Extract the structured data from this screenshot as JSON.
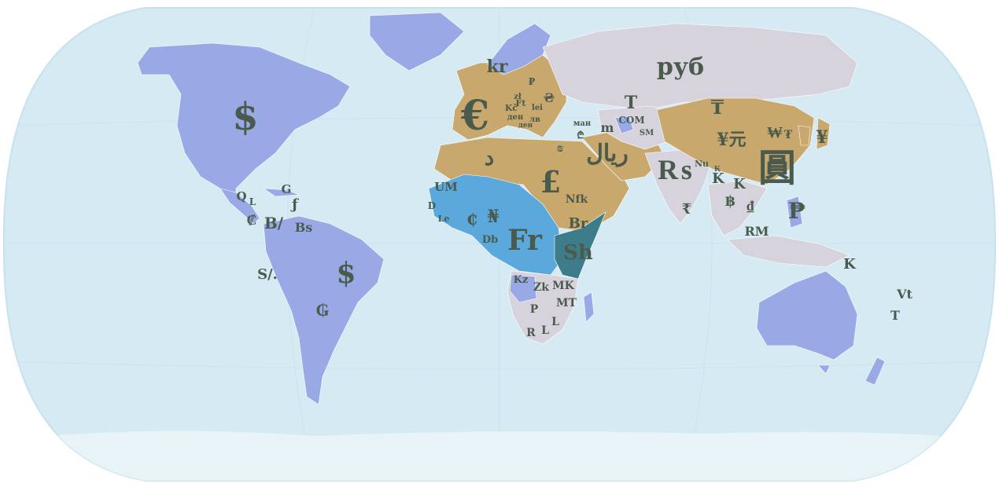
{
  "colors": {
    "ocean": "#d5eaf3",
    "ocean_edge": "#e8f3f8",
    "dollar_zone": "#98a9e6",
    "euro_zone": "#c9a86e",
    "franc_zone": "#5aa8dc",
    "ruble_zone": "#d7d3dc",
    "shilling_zone": "#3d7d8a",
    "symbol_text": "#4a5a4c"
  },
  "symbols": [
    "$",
    "$",
    "€",
    "kr",
    "руб",
    "£",
    "Fr",
    "Sh",
    "₨",
    "圓",
    "₱",
    "₸",
    "T",
    "₮",
    "¥元",
    "₩",
    "¥",
    "د",
    "ريال",
    "UM",
    "₦",
    "₵",
    "Db",
    "Br",
    "Nfk",
    "Kz",
    "Zk",
    "MK",
    "MT",
    "P",
    "R",
    "L",
    "L",
    "RM",
    "K",
    "K",
    "K",
    "฿",
    "₫",
    "Vt",
    "T",
    "Q",
    "L",
    "₡",
    "B/",
    "Bs",
    "ƒ",
    "G",
    "S/.",
    "₲",
    "D",
    "Le",
    "ман",
    "COM",
    "SM",
    "Nu",
    "₪",
    "₾",
    "₽",
    "Ft",
    "Kč",
    "zł",
    "lei",
    "лв",
    "ден",
    "ден",
    "m",
    "₴",
    "₭",
    "₹"
  ]
}
